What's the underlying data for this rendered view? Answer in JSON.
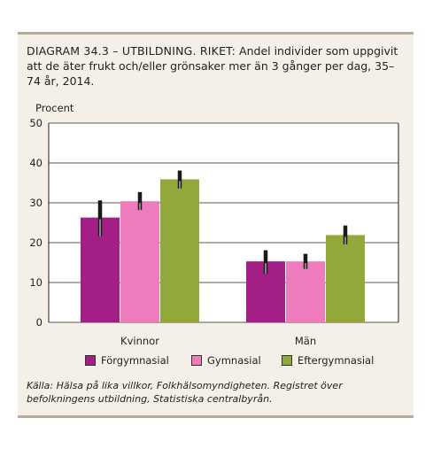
{
  "title_lead": "DIAGRAM 34.3 – UTBILDNING. RIKET:",
  "title_rest": "Andel individer som uppgivit att de äter frukt och/eller grönsaker mer än 3 gånger per dag, 35–74 år, 2014.",
  "source": "Källa: Hälsa på lika villkor, Folkhälsomyndigheten. Registret över befolkningens utbildning, Statistiska centralbyrån.",
  "chart_data": {
    "type": "bar",
    "ylabel": "Procent",
    "ylim": [
      0,
      50
    ],
    "yticks": [
      0,
      10,
      20,
      30,
      40,
      50
    ],
    "grid": true,
    "categories": [
      "Kvinnor",
      "Män"
    ],
    "series": [
      {
        "name": "Förgymnasial",
        "color": "#a41f85",
        "values": [
          26.3,
          15.3
        ],
        "ci": [
          [
            21.6,
            30.6
          ],
          [
            12.2,
            18.1
          ]
        ]
      },
      {
        "name": "Gymnasial",
        "color": "#ee7cbc",
        "values": [
          30.4,
          15.3
        ],
        "ci": [
          [
            28.2,
            32.7
          ],
          [
            13.4,
            17.2
          ]
        ]
      },
      {
        "name": "Eftergymnasial",
        "color": "#93a83a",
        "values": [
          35.9,
          21.9
        ],
        "ci": [
          [
            33.6,
            38.1
          ],
          [
            19.6,
            24.3
          ]
        ]
      }
    ],
    "legend_position": "bottom"
  }
}
